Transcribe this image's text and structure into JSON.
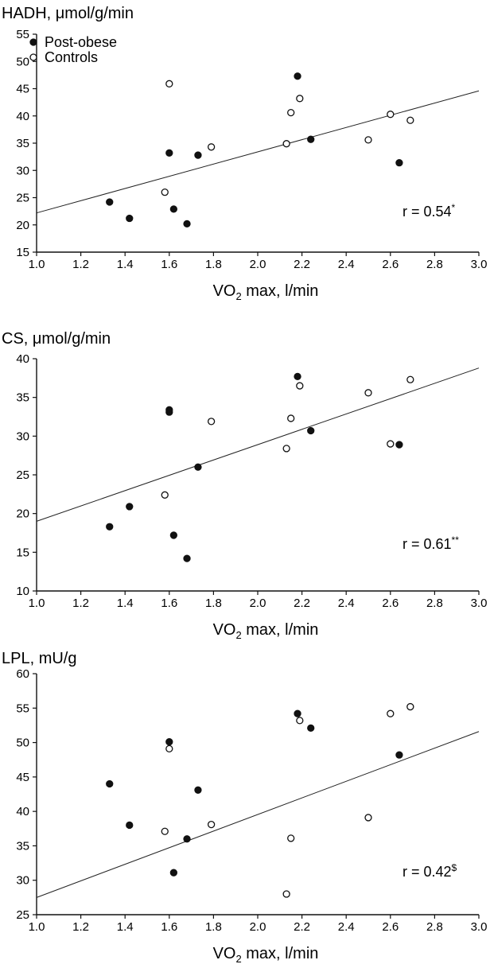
{
  "chart_data": [
    {
      "type": "scatter",
      "title": "HADH, μmol/g/min",
      "xlabel_main": "VO",
      "xlabel_sub": "2",
      "xlabel_rest": " max, l/min",
      "xlim": [
        1.0,
        3.0
      ],
      "ylim": [
        15,
        55
      ],
      "xticks": [
        "1.0",
        "1.2",
        "1.4",
        "1.6",
        "1.8",
        "2.0",
        "2.2",
        "2.4",
        "2.6",
        "2.8",
        "3.0"
      ],
      "yticks": [
        "15",
        "20",
        "25",
        "30",
        "35",
        "40",
        "45",
        "50",
        "55"
      ],
      "legend": [
        {
          "name": "Post-obese",
          "marker": "filled"
        },
        {
          "name": "Controls",
          "marker": "open"
        }
      ],
      "series": [
        {
          "name": "Post-obese",
          "marker": "filled",
          "points": [
            [
              1.33,
              24.2
            ],
            [
              1.42,
              21.2
            ],
            [
              1.6,
              33.2
            ],
            [
              1.62,
              22.9
            ],
            [
              1.68,
              20.2
            ],
            [
              1.73,
              32.8
            ],
            [
              2.18,
              47.3
            ],
            [
              2.24,
              35.7
            ],
            [
              2.64,
              31.4
            ]
          ]
        },
        {
          "name": "Controls",
          "marker": "open",
          "points": [
            [
              1.58,
              26.0
            ],
            [
              1.6,
              45.9
            ],
            [
              1.79,
              34.3
            ],
            [
              2.13,
              34.9
            ],
            [
              2.15,
              40.6
            ],
            [
              2.19,
              43.2
            ],
            [
              2.5,
              35.6
            ],
            [
              2.6,
              40.3
            ],
            [
              2.69,
              39.2
            ]
          ]
        }
      ],
      "regression": [
        [
          1.0,
          22.2
        ],
        [
          3.0,
          44.6
        ]
      ],
      "annotation": "r = 0.54",
      "annotation_sup": "*"
    },
    {
      "type": "scatter",
      "title": "CS, μmol/g/min",
      "xlabel_main": "VO",
      "xlabel_sub": "2",
      "xlabel_rest": " max, l/min",
      "xlim": [
        1.0,
        3.0
      ],
      "ylim": [
        10,
        40
      ],
      "xticks": [
        "1.0",
        "1.2",
        "1.4",
        "1.6",
        "1.8",
        "2.0",
        "2.2",
        "2.4",
        "2.6",
        "2.8",
        "3.0"
      ],
      "yticks": [
        "10",
        "15",
        "20",
        "25",
        "30",
        "35",
        "40"
      ],
      "legend": [],
      "series": [
        {
          "name": "Post-obese",
          "marker": "filled",
          "points": [
            [
              1.33,
              18.3
            ],
            [
              1.42,
              20.9
            ],
            [
              1.6,
              33.4
            ],
            [
              1.6,
              33.1
            ],
            [
              1.62,
              17.2
            ],
            [
              1.68,
              14.2
            ],
            [
              1.73,
              26.0
            ],
            [
              2.18,
              37.7
            ],
            [
              2.24,
              30.7
            ],
            [
              2.64,
              28.9
            ]
          ]
        },
        {
          "name": "Controls",
          "marker": "open",
          "points": [
            [
              1.58,
              22.4
            ],
            [
              1.79,
              31.9
            ],
            [
              2.13,
              28.4
            ],
            [
              2.15,
              32.3
            ],
            [
              2.19,
              36.5
            ],
            [
              2.5,
              35.6
            ],
            [
              2.6,
              29.0
            ],
            [
              2.69,
              37.3
            ]
          ]
        }
      ],
      "regression": [
        [
          1.0,
          19.0
        ],
        [
          3.0,
          38.8
        ]
      ],
      "annotation": "r = 0.61",
      "annotation_sup": "**"
    },
    {
      "type": "scatter",
      "title": "LPL, mU/g",
      "xlabel_main": "VO",
      "xlabel_sub": "2",
      "xlabel_rest": " max, l/min",
      "xlim": [
        1.0,
        3.0
      ],
      "ylim": [
        25,
        60
      ],
      "xticks": [
        "1.0",
        "1.2",
        "1.4",
        "1.6",
        "1.8",
        "2.0",
        "2.2",
        "2.4",
        "2.6",
        "2.8",
        "3.0"
      ],
      "yticks": [
        "25",
        "30",
        "35",
        "40",
        "45",
        "50",
        "55",
        "60"
      ],
      "legend": [],
      "series": [
        {
          "name": "Post-obese",
          "marker": "filled",
          "points": [
            [
              1.33,
              44.0
            ],
            [
              1.42,
              38.0
            ],
            [
              1.6,
              50.1
            ],
            [
              1.62,
              31.1
            ],
            [
              1.68,
              36.0
            ],
            [
              1.73,
              43.1
            ],
            [
              2.18,
              54.2
            ],
            [
              2.24,
              52.1
            ],
            [
              2.64,
              48.2
            ]
          ]
        },
        {
          "name": "Controls",
          "marker": "open",
          "points": [
            [
              1.58,
              37.1
            ],
            [
              1.6,
              49.1
            ],
            [
              1.79,
              38.1
            ],
            [
              2.13,
              28.0
            ],
            [
              2.15,
              36.1
            ],
            [
              2.19,
              53.2
            ],
            [
              2.5,
              39.1
            ],
            [
              2.6,
              54.2
            ],
            [
              2.69,
              55.2
            ]
          ]
        }
      ],
      "regression": [
        [
          1.0,
          27.5
        ],
        [
          3.0,
          51.6
        ]
      ],
      "annotation": "r = 0.42",
      "annotation_sup": "$"
    }
  ]
}
